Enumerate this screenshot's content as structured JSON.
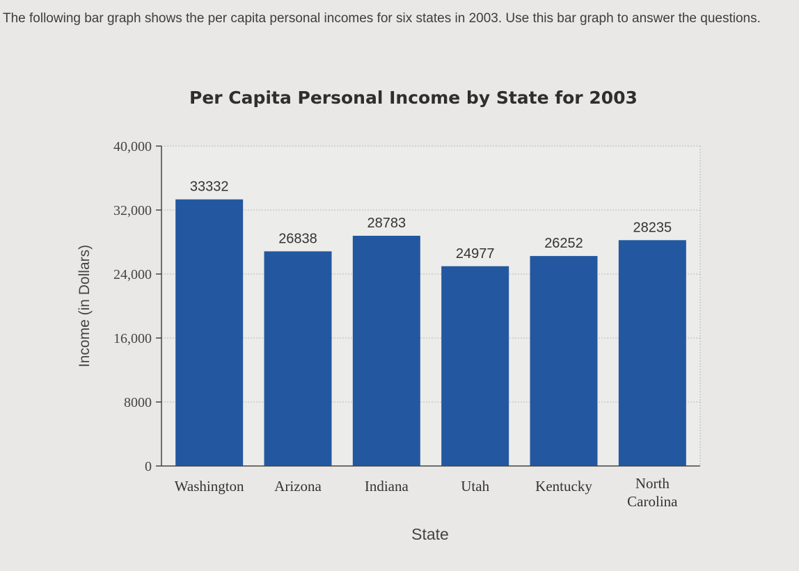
{
  "prompt": "The following bar graph shows the per capita personal incomes for six states in 2003. Use this bar graph to answer the questions.",
  "chart_data": {
    "type": "bar",
    "title": "Per Capita Personal Income by State for 2003",
    "xlabel": "State",
    "ylabel": "Income (in Dollars)",
    "categories": [
      "Washington",
      "Arizona",
      "Indiana",
      "Utah",
      "Kentucky",
      "North Carolina"
    ],
    "values": [
      33332,
      26838,
      28783,
      24977,
      26252,
      28235
    ],
    "data_labels": [
      "33332",
      "26838",
      "28783",
      "24977",
      "26252",
      "28235"
    ],
    "yticks": [
      0,
      8000,
      16000,
      24000,
      32000,
      40000
    ],
    "ytick_labels": [
      "0",
      "8000",
      "16,000",
      "24,000",
      "32,000",
      "40,000"
    ],
    "ylim": [
      0,
      40000
    ],
    "grid": true,
    "bar_color": "#2358a0"
  }
}
